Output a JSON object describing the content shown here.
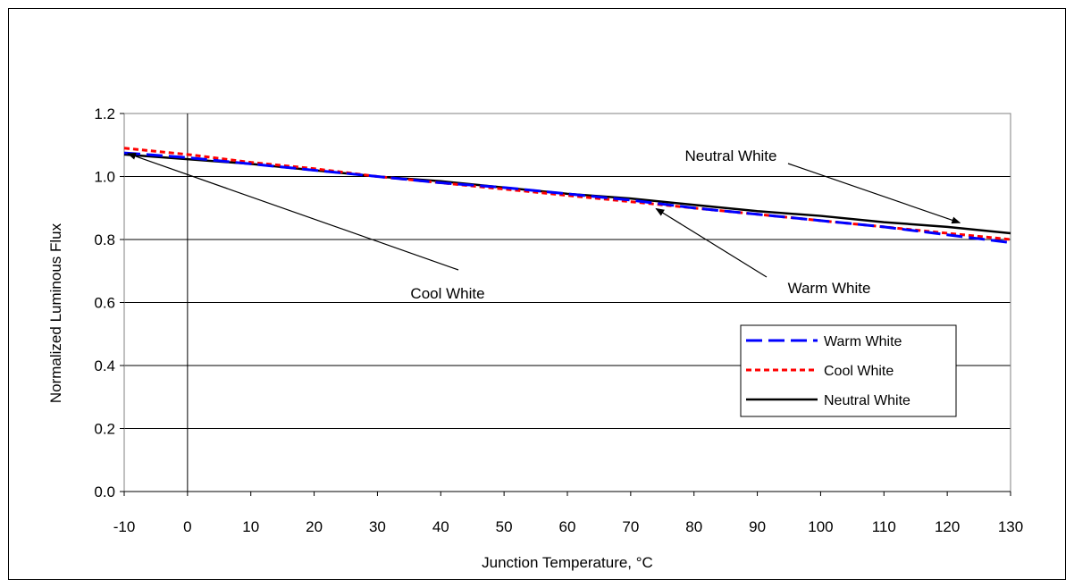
{
  "chart_data": {
    "type": "line",
    "xlabel": "Junction Temperature,  °C",
    "ylabel": "Normalized Luminous Flux",
    "xlim": [
      -10,
      130
    ],
    "ylim": [
      0,
      1.2
    ],
    "x_ticks": [
      -10,
      0,
      10,
      20,
      30,
      40,
      50,
      60,
      70,
      80,
      90,
      100,
      110,
      120,
      130
    ],
    "y_ticks": [
      "0.0",
      "0.2",
      "0.4",
      "0.6",
      "0.8",
      "1.0",
      "1.2"
    ],
    "grid": "horizontal",
    "legend_placement": "bottom-right",
    "x": [
      -10,
      0,
      10,
      20,
      30,
      40,
      50,
      60,
      70,
      80,
      90,
      100,
      110,
      120,
      130
    ],
    "series": [
      {
        "name": "Warm White",
        "color": "#0000ff",
        "style": "long-dash",
        "values": [
          1.075,
          1.06,
          1.04,
          1.02,
          1.0,
          0.98,
          0.965,
          0.945,
          0.925,
          0.9,
          0.88,
          0.86,
          0.84,
          0.815,
          0.79
        ]
      },
      {
        "name": "Cool White",
        "color": "#ff0000",
        "style": "short-dash",
        "values": [
          1.09,
          1.07,
          1.045,
          1.025,
          1.0,
          0.98,
          0.96,
          0.94,
          0.92,
          0.9,
          0.88,
          0.86,
          0.84,
          0.82,
          0.8
        ]
      },
      {
        "name": "Neutral White",
        "color": "#000000",
        "style": "solid",
        "values": [
          1.07,
          1.055,
          1.04,
          1.02,
          1.0,
          0.985,
          0.965,
          0.945,
          0.93,
          0.91,
          0.89,
          0.875,
          0.855,
          0.84,
          0.82
        ]
      }
    ],
    "annotations": [
      {
        "text": "Neutral White",
        "series": 2,
        "point_x": 122
      },
      {
        "text": "Warm White",
        "series": 0,
        "point_x": 74
      },
      {
        "text": "Cool White",
        "series": 1,
        "point_x": -10
      }
    ]
  }
}
